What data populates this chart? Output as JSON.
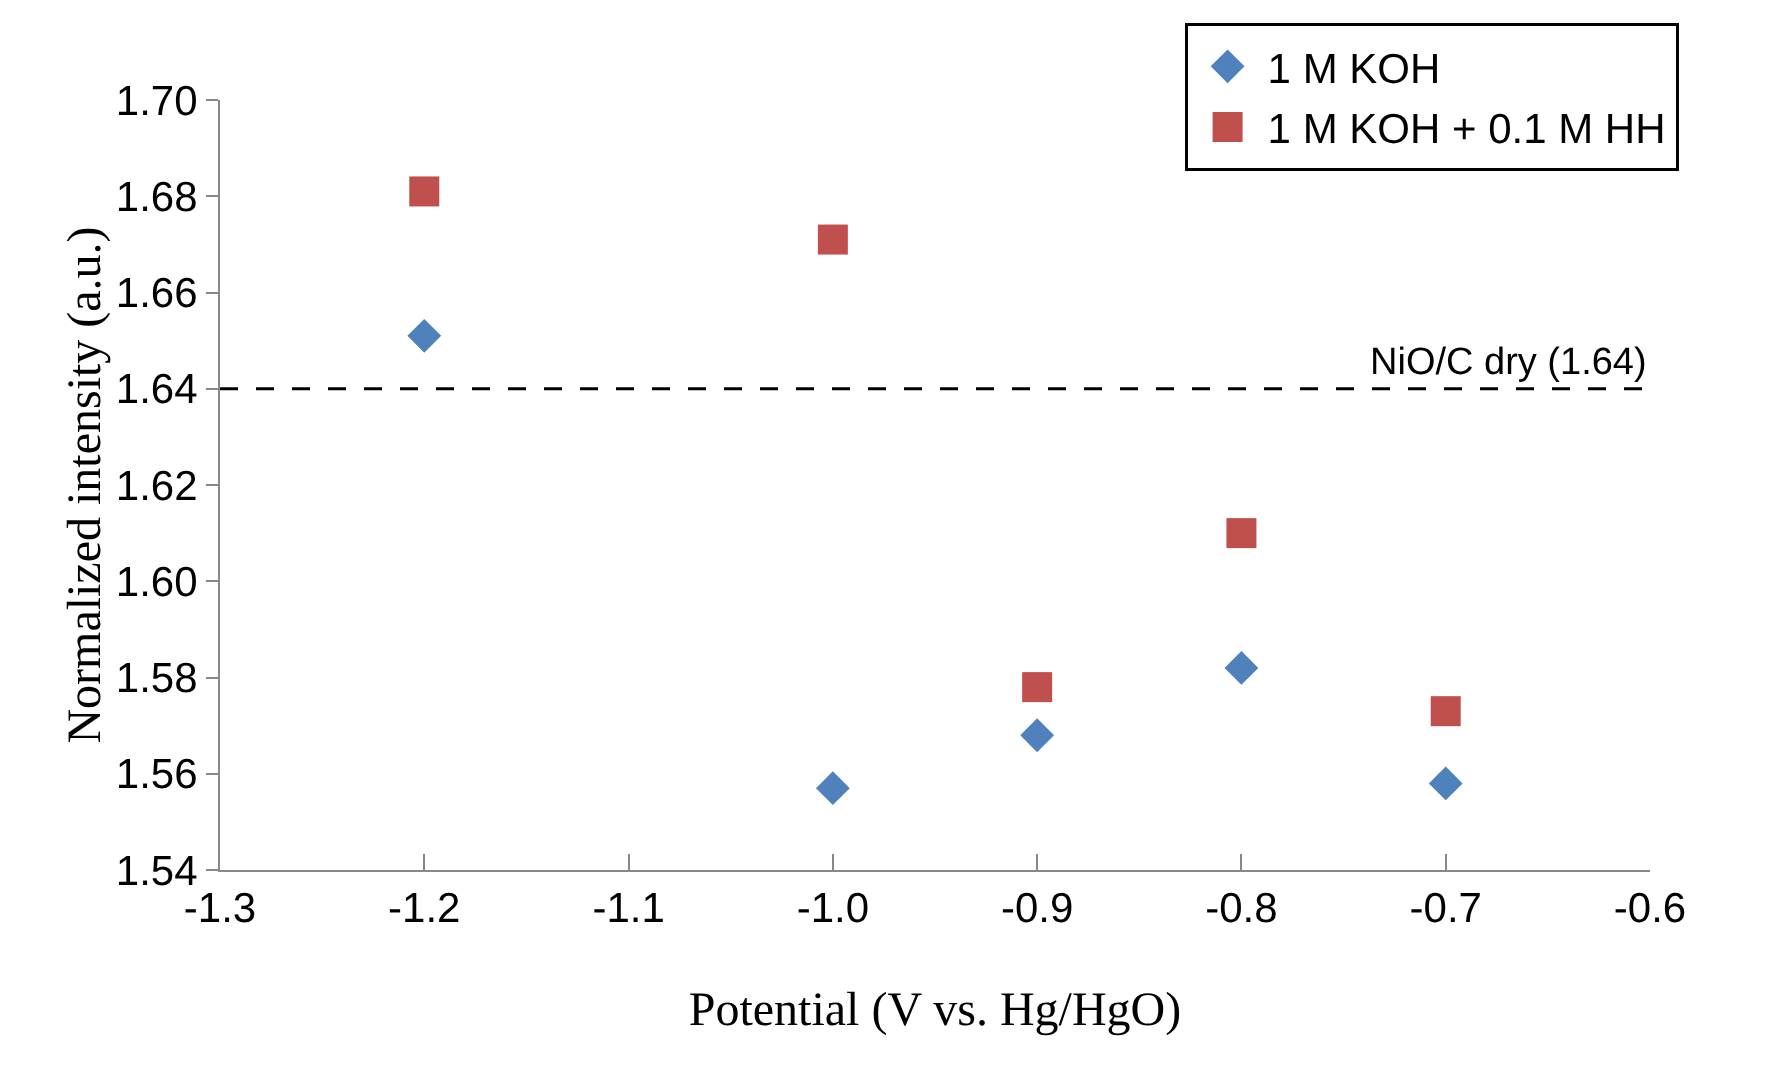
{
  "chart_data": {
    "type": "scatter",
    "xlabel": "Potential (V vs. Hg/HgO)",
    "ylabel": "Normalized intensity (a.u.)",
    "x": [
      -1.2,
      -1.0,
      -0.9,
      -0.8,
      -0.7
    ],
    "series": [
      {
        "name": "1 M KOH",
        "color": "#4f81bd",
        "marker": "diamond",
        "values": [
          1.651,
          1.557,
          1.568,
          1.582,
          1.558
        ]
      },
      {
        "name": "1 M KOH + 0.1 M HH",
        "color": "#c0504d",
        "marker": "square",
        "values": [
          1.681,
          1.671,
          1.578,
          1.61,
          1.573
        ]
      }
    ],
    "xlim": [
      -1.3,
      -0.6
    ],
    "xticks": [
      -1.3,
      {
        "value": -1.2,
        "label": "-1.2"
      },
      {
        "value": -1.1,
        "label": "-1.1"
      },
      {
        "value": -1.0,
        "label": "-1.0"
      },
      {
        "value": -0.9,
        "label": "-0.9"
      },
      {
        "value": -0.8,
        "label": "-0.8"
      },
      {
        "value": -0.7,
        "label": "-0.7"
      },
      {
        "value": -0.6,
        "label": "-0.6"
      }
    ],
    "ylim": [
      1.54,
      1.7
    ],
    "yticks": [
      {
        "value": 1.54,
        "label": "1.54"
      },
      {
        "value": 1.56,
        "label": "1.56"
      },
      {
        "value": 1.58,
        "label": "1.58"
      },
      {
        "value": 1.6,
        "label": "1.60"
      },
      {
        "value": 1.62,
        "label": "1.62"
      },
      {
        "value": 1.64,
        "label": "1.64"
      },
      {
        "value": 1.66,
        "label": "1.66"
      },
      {
        "value": 1.68,
        "label": "1.68"
      },
      {
        "value": 1.7,
        "label": "1.70"
      }
    ],
    "ref_lines": [
      {
        "axis": "y",
        "value": 1.64,
        "label": "NiO/C dry (1.64)",
        "color": "#000000",
        "line_style": "dashed"
      }
    ],
    "grid": false,
    "legend": "top right"
  }
}
